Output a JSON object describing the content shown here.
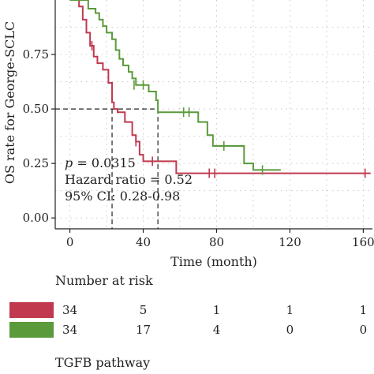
{
  "chart_data": {
    "type": "line",
    "subtype": "kaplan-meier",
    "xlabel": "Time (month)",
    "ylabel": "OS rate for George-SCLC",
    "xlim": [
      -8,
      165
    ],
    "ylim": [
      -0.05,
      1.0
    ],
    "x_ticks": [
      "0",
      "40",
      "80",
      "120",
      "160"
    ],
    "x_tick_values": [
      0,
      40,
      80,
      120,
      160
    ],
    "y_ticks": [
      "0.00",
      "0.25",
      "0.50",
      "0.75"
    ],
    "y_tick_values": [
      0,
      0.25,
      0.5,
      0.75
    ],
    "grid": true,
    "series": [
      {
        "color": "#c0394f",
        "steps": [
          [
            0,
            1.0
          ],
          [
            5,
            0.97
          ],
          [
            7,
            0.91
          ],
          [
            9,
            0.85
          ],
          [
            11,
            0.79
          ],
          [
            13,
            0.74
          ],
          [
            15,
            0.71
          ],
          [
            18,
            0.68
          ],
          [
            21,
            0.62
          ],
          [
            23,
            0.53
          ],
          [
            24,
            0.5
          ],
          [
            26,
            0.485
          ],
          [
            30,
            0.44
          ],
          [
            34,
            0.38
          ],
          [
            36,
            0.35
          ],
          [
            38,
            0.29
          ],
          [
            40,
            0.26
          ],
          [
            58,
            0.205
          ],
          [
            164,
            0.205
          ]
        ],
        "censor": [
          [
            12,
            0.79
          ],
          [
            36,
            0.35
          ],
          [
            45,
            0.26
          ],
          [
            76,
            0.205
          ],
          [
            79,
            0.205
          ],
          [
            161,
            0.205
          ]
        ]
      },
      {
        "color": "#5a9a3a",
        "steps": [
          [
            0,
            1.0
          ],
          [
            8,
            1.0
          ],
          [
            10,
            0.96
          ],
          [
            14,
            0.94
          ],
          [
            16,
            0.91
          ],
          [
            18,
            0.88
          ],
          [
            20,
            0.85
          ],
          [
            23,
            0.82
          ],
          [
            25,
            0.77
          ],
          [
            27,
            0.73
          ],
          [
            29,
            0.7
          ],
          [
            32,
            0.67
          ],
          [
            34,
            0.64
          ],
          [
            36,
            0.61
          ],
          [
            43,
            0.58
          ],
          [
            47,
            0.54
          ],
          [
            48,
            0.485
          ],
          [
            70,
            0.44
          ],
          [
            75,
            0.38
          ],
          [
            78,
            0.33
          ],
          [
            95,
            0.25
          ],
          [
            100,
            0.22
          ],
          [
            115,
            0.22
          ]
        ],
        "censor": [
          [
            35,
            0.61
          ],
          [
            40,
            0.61
          ],
          [
            62,
            0.485
          ],
          [
            65,
            0.485
          ],
          [
            84,
            0.33
          ],
          [
            105,
            0.22
          ]
        ]
      }
    ],
    "reference_lines": {
      "y": 0.5,
      "median_x": [
        23,
        48
      ]
    },
    "annotations": [
      {
        "prefix": "p",
        "text": " = 0.0315"
      },
      {
        "text": "Hazard ratio = 0.52"
      },
      {
        "text": "95% CI: 0.28-0.98"
      }
    ]
  },
  "risk_table": {
    "title": "Number at risk",
    "rows": [
      {
        "color": "#c0394f",
        "values": [
          "34",
          "5",
          "1",
          "1",
          "1"
        ]
      },
      {
        "color": "#5a9a3a",
        "values": [
          "34",
          "17",
          "4",
          "0",
          "0"
        ]
      }
    ]
  },
  "footer_label": "TGFB pathway"
}
